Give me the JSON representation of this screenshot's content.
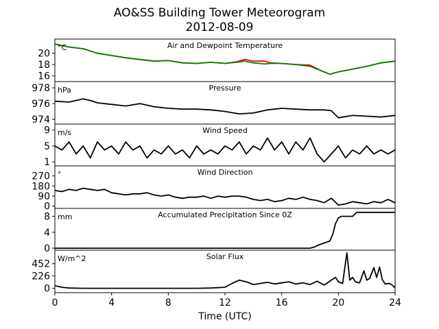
{
  "figure": {
    "title_line1": "AO&SS Building Tower Meteorogram",
    "title_line2": "2012-08-09",
    "xlabel": "Time (UTC)",
    "xticks": [
      0,
      4,
      8,
      12,
      16,
      20,
      24
    ],
    "xlim": [
      0,
      24
    ]
  },
  "chart_data": [
    {
      "type": "line",
      "title": "Air and Dewpoint Temperature",
      "unit": "°C",
      "ylim": [
        15.0,
        22.5
      ],
      "yticks": [
        16,
        18,
        20
      ],
      "series": [
        {
          "color": "#ff0000",
          "x": [
            0,
            1,
            2,
            3,
            4,
            5,
            6,
            7,
            8,
            9,
            10,
            11,
            12,
            12.8,
            13.4,
            14,
            14.8,
            15.2,
            16,
            17,
            18,
            18.8,
            19.4,
            20,
            21,
            22,
            23,
            24
          ],
          "y": [
            21.6,
            21.1,
            20.8,
            20.0,
            19.6,
            19.2,
            18.9,
            18.6,
            18.7,
            18.3,
            18.2,
            18.4,
            18.2,
            18.5,
            18.9,
            18.6,
            18.6,
            18.3,
            18.2,
            18.0,
            17.9,
            16.9,
            16.3,
            16.7,
            17.2,
            17.7,
            18.3,
            18.6
          ]
        },
        {
          "color": "#008000",
          "x": [
            0,
            1,
            2,
            3,
            4,
            5,
            6,
            7,
            8,
            9,
            10,
            11,
            12,
            12.8,
            13.4,
            14,
            14.8,
            15.2,
            16,
            17,
            18,
            18.8,
            19.4,
            20,
            21,
            22,
            23,
            24
          ],
          "y": [
            21.6,
            21.1,
            20.8,
            20.0,
            19.6,
            19.2,
            18.9,
            18.6,
            18.7,
            18.3,
            18.2,
            18.4,
            18.2,
            18.4,
            18.6,
            18.3,
            18.1,
            18.2,
            18.2,
            18.0,
            17.7,
            16.9,
            16.3,
            16.7,
            17.2,
            17.7,
            18.3,
            18.6
          ]
        }
      ]
    },
    {
      "type": "line",
      "title": "Pressure",
      "unit": "hPa",
      "ylim": [
        973.4,
        978.8
      ],
      "yticks": [
        974,
        976,
        978
      ],
      "series": [
        {
          "color": "#000000",
          "x": [
            0,
            1,
            2,
            2.5,
            3,
            4,
            5,
            6,
            7,
            8,
            9,
            10,
            11,
            12,
            13,
            14,
            15,
            16,
            17,
            18,
            19,
            19.5,
            20,
            21,
            22,
            23,
            24
          ],
          "y": [
            976.3,
            976.2,
            976.6,
            976.4,
            976.1,
            975.9,
            975.7,
            976.0,
            975.6,
            975.4,
            975.3,
            975.3,
            975.2,
            975.0,
            974.7,
            974.8,
            975.2,
            975.4,
            975.3,
            975.2,
            975.2,
            975.1,
            974.2,
            974.5,
            974.4,
            974.3,
            974.5
          ]
        }
      ]
    },
    {
      "type": "line",
      "title": "Wind Speed",
      "unit": "m/s",
      "ylim": [
        0,
        10.5
      ],
      "yticks": [
        1,
        5,
        9
      ],
      "series": [
        {
          "color": "#000000",
          "x": [
            0,
            0.5,
            1,
            1.5,
            2,
            2.5,
            3,
            3.5,
            4,
            4.5,
            5,
            5.5,
            6,
            6.5,
            7,
            7.5,
            8,
            8.5,
            9,
            9.5,
            10,
            10.5,
            11,
            11.5,
            12,
            12.5,
            13,
            13.5,
            14,
            14.5,
            15,
            15.5,
            16,
            16.5,
            17,
            17.5,
            18,
            18.5,
            19,
            19.5,
            20,
            20.5,
            21,
            21.5,
            22,
            22.5,
            23,
            23.5,
            24
          ],
          "y": [
            5,
            4,
            6,
            3,
            5,
            2,
            6,
            4,
            5,
            3,
            6,
            4,
            5,
            2,
            4,
            3,
            5,
            3,
            4,
            2,
            5,
            3,
            4,
            3,
            5,
            4,
            6,
            3,
            5,
            4,
            7,
            4,
            6,
            3,
            6,
            4,
            7,
            3,
            1,
            3,
            5,
            2,
            4,
            3,
            5,
            3,
            4,
            3,
            4
          ]
        }
      ]
    },
    {
      "type": "line",
      "title": "Wind Direction",
      "unit": "°",
      "ylim": [
        -20,
        360
      ],
      "yticks": [
        0,
        90,
        180,
        270
      ],
      "series": [
        {
          "color": "#000000",
          "x": [
            0,
            0.5,
            1,
            1.5,
            2,
            2.5,
            3,
            3.5,
            4,
            4.5,
            5,
            5.5,
            6,
            6.5,
            7,
            7.5,
            8,
            8.5,
            9,
            9.5,
            10,
            10.5,
            11,
            11.5,
            12,
            12.5,
            13,
            13.5,
            14,
            14.5,
            15,
            15.5,
            16,
            16.5,
            17,
            17.5,
            18,
            18.5,
            19,
            19.5,
            20,
            20.5,
            21,
            21.5,
            22,
            22.5,
            23,
            23.5,
            24
          ],
          "y": [
            140,
            130,
            150,
            140,
            160,
            150,
            140,
            150,
            120,
            110,
            100,
            110,
            110,
            120,
            100,
            90,
            100,
            80,
            70,
            80,
            80,
            90,
            70,
            90,
            80,
            90,
            90,
            80,
            60,
            50,
            60,
            40,
            50,
            70,
            60,
            80,
            60,
            50,
            30,
            70,
            10,
            20,
            40,
            30,
            20,
            40,
            30,
            60,
            30
          ]
        }
      ]
    },
    {
      "type": "line",
      "title": "Accumulated Precipitation Since 0Z",
      "unit": "mm",
      "ylim": [
        -0.5,
        10.0
      ],
      "yticks": [
        0,
        4,
        8
      ],
      "series": [
        {
          "color": "#000000",
          "x": [
            0,
            18,
            18.3,
            18.6,
            19.0,
            19.4,
            19.6,
            19.8,
            20.0,
            20.2,
            21.0,
            21.3,
            24
          ],
          "y": [
            0,
            0,
            0.3,
            0.8,
            1.3,
            1.8,
            3.5,
            6.2,
            7.6,
            8.0,
            8.0,
            9.0,
            9.0
          ]
        }
      ]
    },
    {
      "type": "line",
      "title": "Solar Flux",
      "unit": "W/m^2",
      "ylim": [
        -80,
        700
      ],
      "yticks": [
        0,
        226,
        452
      ],
      "series": [
        {
          "color": "#000000",
          "x": [
            0,
            0.5,
            1,
            2,
            4,
            6,
            8,
            10,
            11,
            12,
            12.5,
            13,
            13.5,
            14,
            14.5,
            15,
            15.5,
            16,
            16.5,
            17,
            17.5,
            18,
            18.5,
            19,
            19.5,
            19.8,
            20,
            20.3,
            20.6,
            20.8,
            21,
            21.2,
            21.5,
            21.8,
            22,
            22.2,
            22.5,
            22.7,
            22.9,
            23.1,
            23.3,
            23.6,
            23.8,
            24
          ],
          "y": [
            50,
            20,
            5,
            0,
            0,
            0,
            0,
            0,
            5,
            20,
            90,
            150,
            120,
            70,
            90,
            110,
            80,
            100,
            120,
            80,
            100,
            70,
            130,
            60,
            150,
            200,
            120,
            90,
            650,
            150,
            200,
            120,
            100,
            320,
            150,
            180,
            380,
            200,
            390,
            160,
            80,
            90,
            60,
            10
          ]
        }
      ]
    }
  ]
}
